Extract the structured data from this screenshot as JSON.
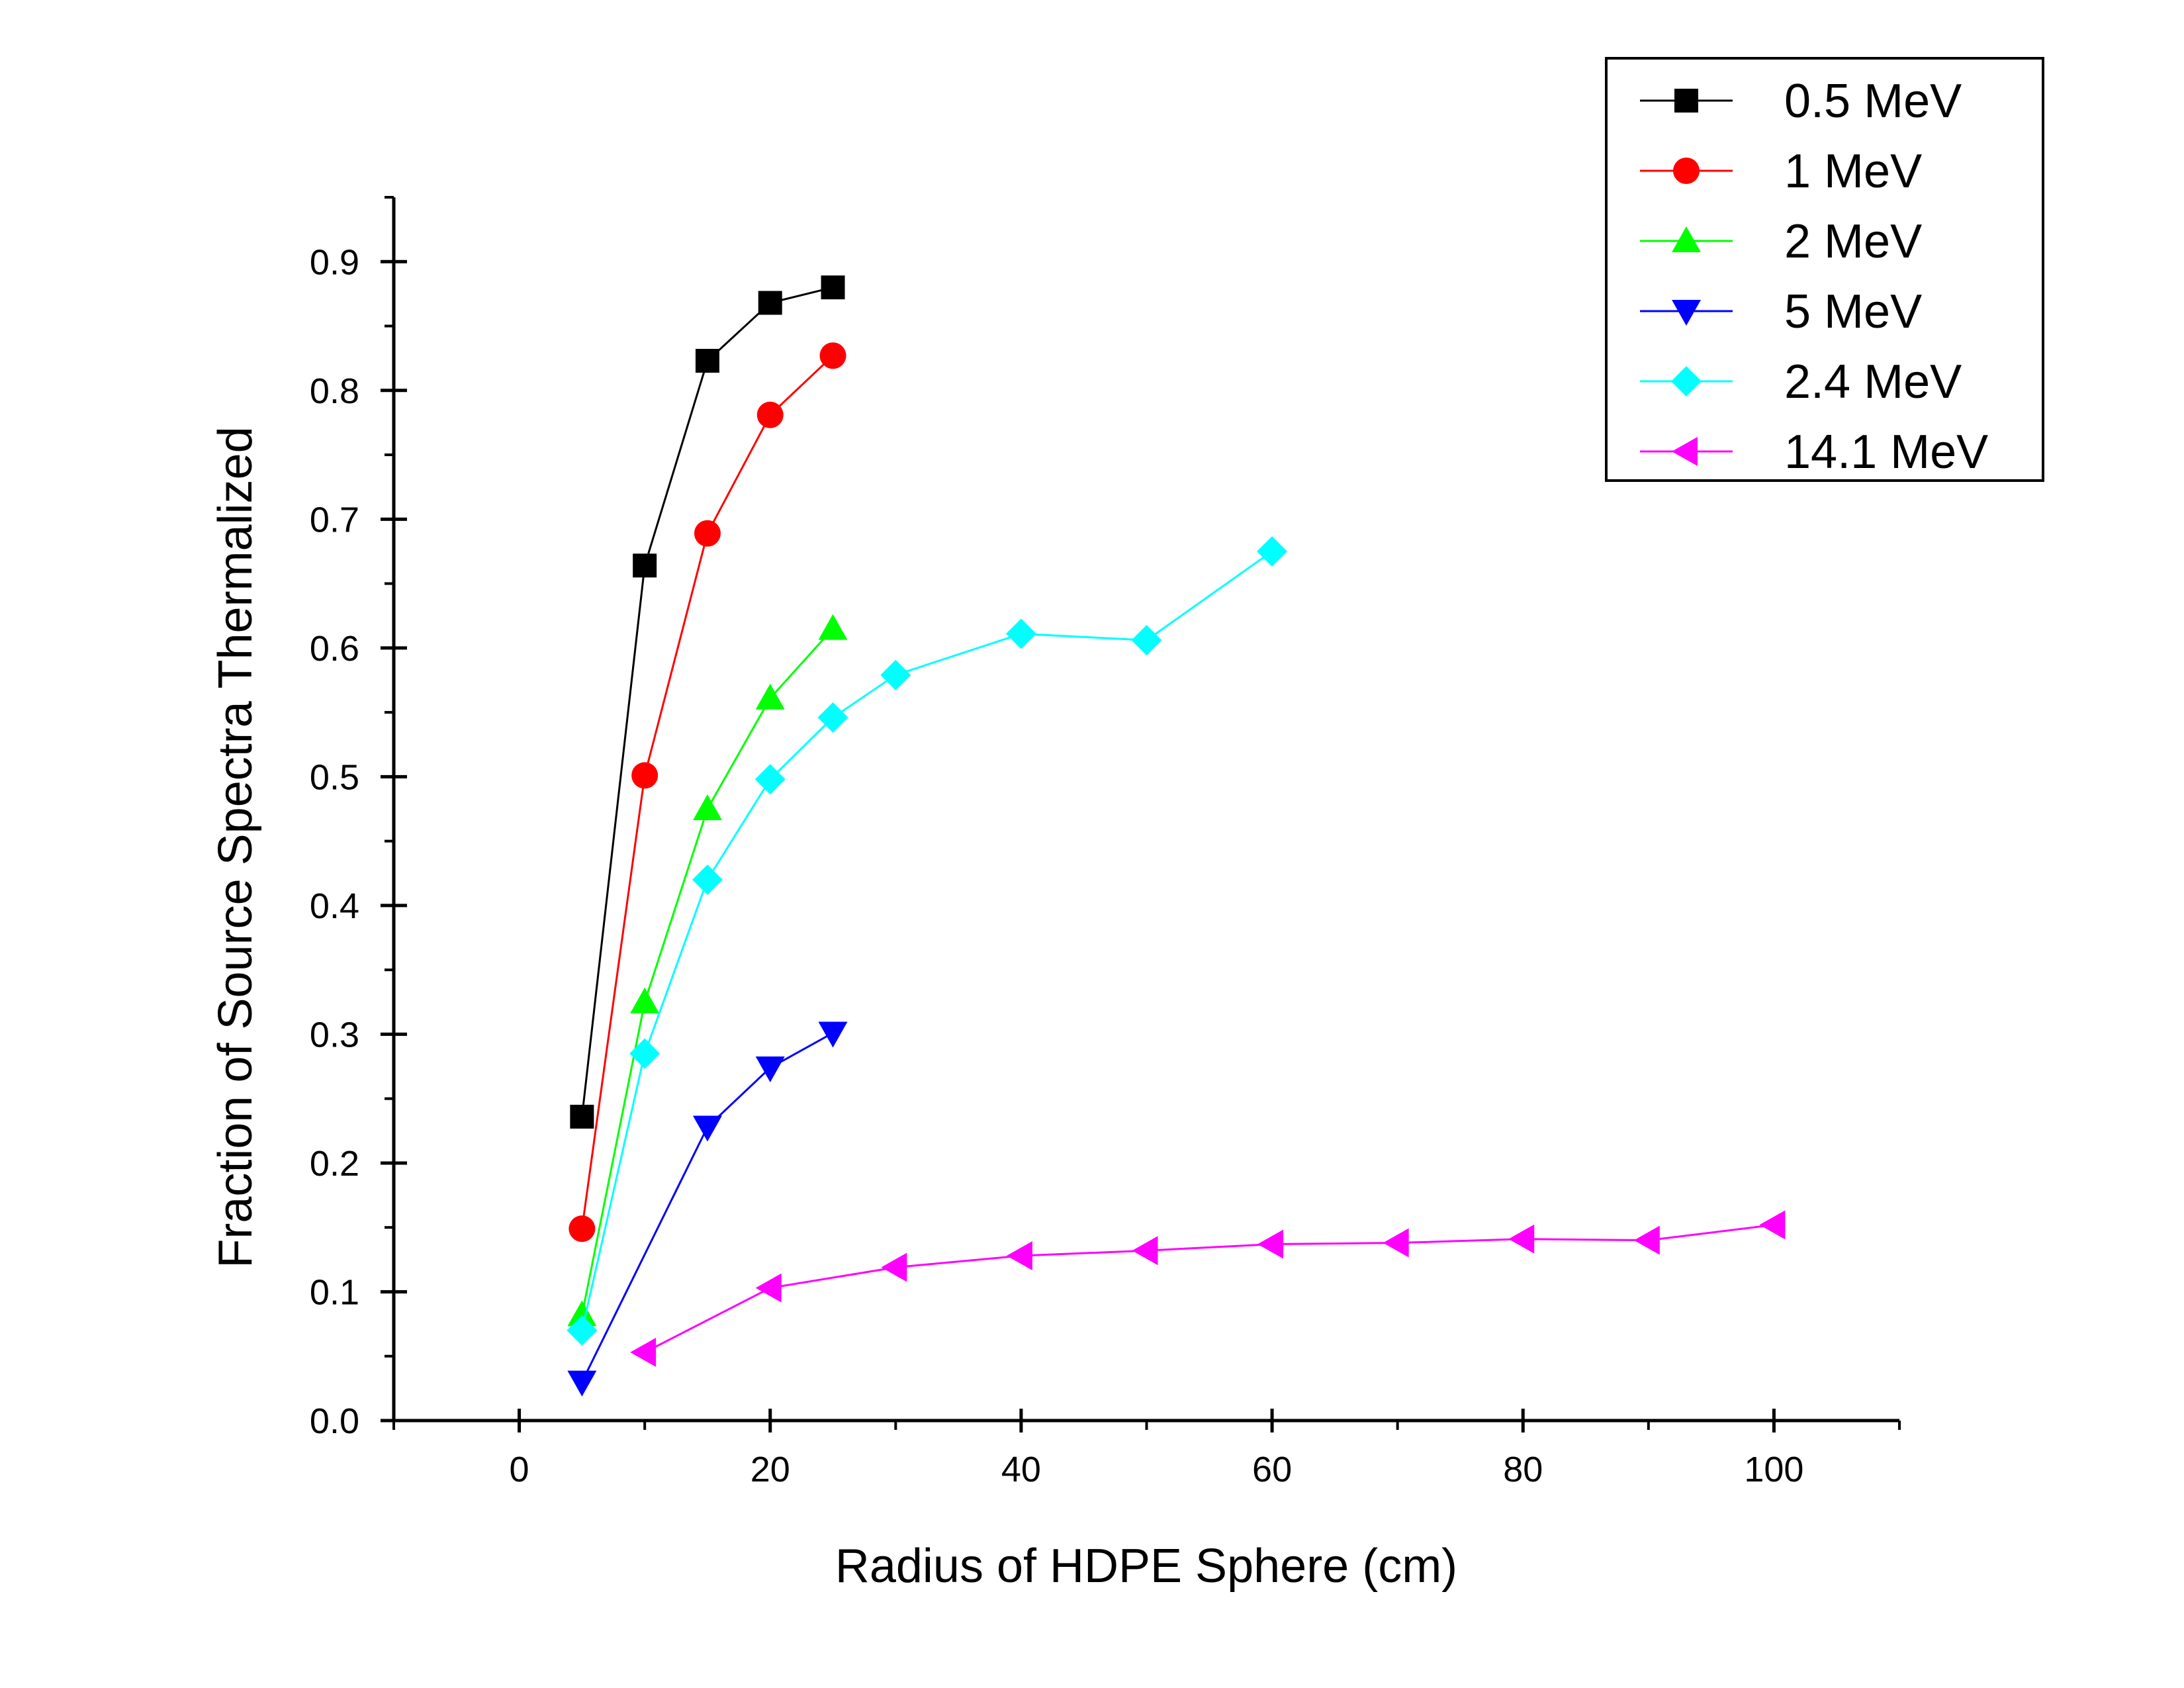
{
  "chart_data": {
    "type": "line",
    "title": "",
    "xlabel": "Radius of HDPE Sphere (cm)",
    "ylabel": "Fraction of Source Spectra Thermalized",
    "xlim": [
      -10,
      110
    ],
    "ylim": [
      0.0,
      0.95
    ],
    "x_ticks": [
      0,
      20,
      40,
      60,
      80,
      100
    ],
    "x_tick_labels": [
      "0",
      "20",
      "40",
      "60",
      "80",
      "100"
    ],
    "y_ticks": [
      0.0,
      0.1,
      0.2,
      0.3,
      0.4,
      0.5,
      0.6,
      0.7,
      0.8,
      0.9
    ],
    "y_tick_labels": [
      "0.0",
      "0.1",
      "0.2",
      "0.3",
      "0.4",
      "0.5",
      "0.6",
      "0.7",
      "0.8",
      "0.9"
    ],
    "grid": false,
    "legend_position": "top-right",
    "series": [
      {
        "name": "0.5 MeV",
        "color": "#000000",
        "marker": "square",
        "x": [
          5,
          10,
          15,
          20,
          25
        ],
        "y": [
          0.236,
          0.664,
          0.823,
          0.868,
          0.88
        ]
      },
      {
        "name": "1 MeV",
        "color": "#ff0000",
        "marker": "circle",
        "x": [
          5,
          10,
          15,
          20,
          25
        ],
        "y": [
          0.149,
          0.501,
          0.689,
          0.781,
          0.827
        ]
      },
      {
        "name": "2 MeV",
        "color": "#00ff00",
        "marker": "triangle-up",
        "x": [
          5,
          10,
          15,
          20,
          25
        ],
        "y": [
          0.082,
          0.325,
          0.475,
          0.561,
          0.615
        ]
      },
      {
        "name": "5 MeV",
        "color": "#0000ff",
        "marker": "triangle-down",
        "x": [
          5,
          15,
          20,
          25
        ],
        "y": [
          0.03,
          0.228,
          0.274,
          0.301
        ]
      },
      {
        "name": "2.4 MeV",
        "color": "#00ffff",
        "marker": "diamond",
        "x": [
          5,
          10,
          15,
          20,
          25,
          30,
          40,
          50,
          60
        ],
        "y": [
          0.07,
          0.285,
          0.42,
          0.498,
          0.546,
          0.579,
          0.611,
          0.606,
          0.675
        ]
      },
      {
        "name": "14.1 MeV",
        "color": "#ff00ff",
        "marker": "triangle-left",
        "x": [
          10,
          20,
          30,
          40,
          50,
          60,
          70,
          80,
          90,
          100
        ],
        "y": [
          0.053,
          0.103,
          0.119,
          0.128,
          0.132,
          0.137,
          0.138,
          0.141,
          0.14,
          0.152
        ]
      }
    ]
  }
}
